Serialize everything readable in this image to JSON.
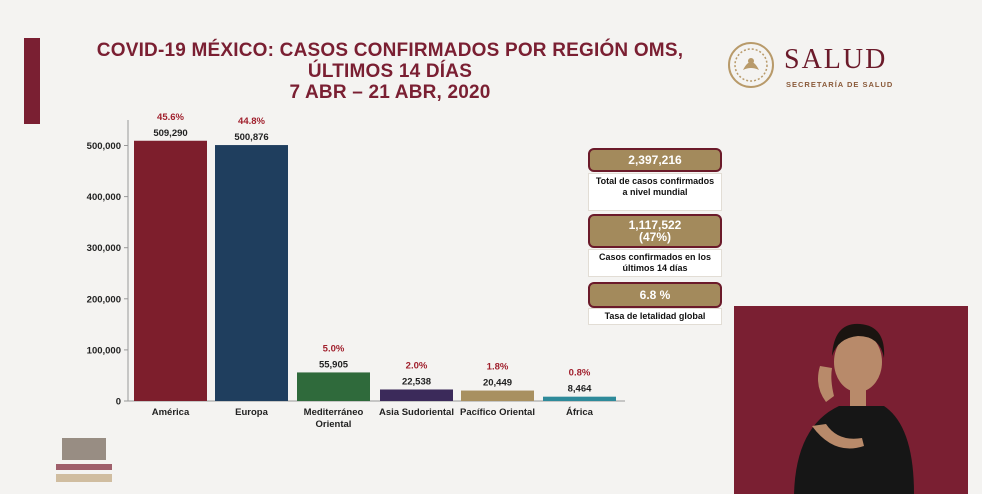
{
  "title": {
    "line1": "COVID-19 MÉXICO: CASOS CONFIRMADOS POR REGIÓN OMS,",
    "line2": "ÚLTIMOS 14 DÍAS",
    "line3": "7 ABR – 21 ABR, 2020"
  },
  "logo": {
    "name": "SALUD",
    "subtitle": "SECRETARÍA DE SALUD",
    "seal_icon": "mexico-seal-icon"
  },
  "colors": {
    "brand": "#7a1f32",
    "gold": "#a38a5c",
    "america": "#7d1e2c",
    "europa": "#1f3e5e",
    "mediterraneo": "#2f6a3b",
    "asia": "#3b2a5a",
    "pacifico": "#a89060",
    "africa": "#2e8a9a"
  },
  "chart_data": {
    "type": "bar",
    "categories": [
      "América",
      "Europa",
      "Mediterráneo Oriental",
      "Asia Sudoriental",
      "Pacífico Oriental",
      "África"
    ],
    "category_lines": [
      [
        "América"
      ],
      [
        "Europa"
      ],
      [
        "Mediterráneo",
        "Oriental"
      ],
      [
        "Asia Sudoriental"
      ],
      [
        "Pacífico Oriental"
      ],
      [
        "África"
      ]
    ],
    "values": [
      509290,
      500876,
      55905,
      22538,
      20449,
      8464
    ],
    "value_labels": [
      "509,290",
      "500,876",
      "55,905",
      "22,538",
      "20,449",
      "8,464"
    ],
    "percent_labels": [
      "45.6%",
      "44.8%",
      "5.0%",
      "2.0%",
      "1.8%",
      "0.8%"
    ],
    "yticks": [
      0,
      100000,
      200000,
      300000,
      400000,
      500000
    ],
    "ytick_labels": [
      "0",
      "100,000",
      "200,000",
      "300,000",
      "400,000",
      "500,000"
    ],
    "ylim": [
      0,
      560000
    ],
    "grid": false,
    "legend": "none"
  },
  "summary": {
    "total_value": "2,397,216",
    "total_text": "Total de casos confirmados a nivel mundial",
    "recent_value": "1,117,522",
    "recent_pct": "(47%)",
    "recent_text": "Casos confirmados en los últimos 14 días",
    "lethality_value": "6.8 %",
    "lethality_text": "Tasa de letalidad global"
  }
}
